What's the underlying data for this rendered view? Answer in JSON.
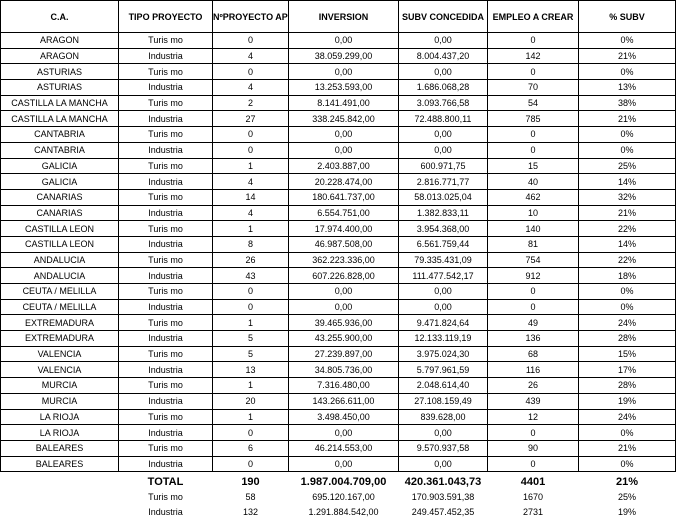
{
  "table": {
    "header": [
      "C.A.",
      "TIPO PROYECTO",
      "NºPROYECTO APROBADOS",
      "INVERSION",
      "SUBV CONCEDIDA",
      "EMPLEO A CREAR",
      "% SUBV"
    ],
    "rows": [
      [
        "ARAGON",
        "Turis mo",
        "0",
        "0,00",
        "0,00",
        "0",
        "0%"
      ],
      [
        "ARAGON",
        "Industria",
        "4",
        "38.059.299,00",
        "8.004.437,20",
        "142",
        "21%"
      ],
      [
        "ASTURIAS",
        "Turis mo",
        "0",
        "0,00",
        "0,00",
        "0",
        "0%"
      ],
      [
        "ASTURIAS",
        "Industria",
        "4",
        "13.253.593,00",
        "1.686.068,28",
        "70",
        "13%"
      ],
      [
        "CASTILLA LA MANCHA",
        "Turis mo",
        "2",
        "8.141.491,00",
        "3.093.766,58",
        "54",
        "38%"
      ],
      [
        "CASTILLA LA MANCHA",
        "Industria",
        "27",
        "338.245.842,00",
        "72.488.800,11",
        "785",
        "21%"
      ],
      [
        "CANTABRIA",
        "Turis mo",
        "0",
        "0,00",
        "0,00",
        "0",
        "0%"
      ],
      [
        "CANTABRIA",
        "Industria",
        "0",
        "0,00",
        "0,00",
        "0",
        "0%"
      ],
      [
        "GALICIA",
        "Turis mo",
        "1",
        "2.403.887,00",
        "600.971,75",
        "15",
        "25%"
      ],
      [
        "GALICIA",
        "Industria",
        "4",
        "20.228.474,00",
        "2.816.771,77",
        "40",
        "14%"
      ],
      [
        "CANARIAS",
        "Turis mo",
        "14",
        "180.641.737,00",
        "58.013.025,04",
        "462",
        "32%"
      ],
      [
        "CANARIAS",
        "Industria",
        "4",
        "6.554.751,00",
        "1.382.833,11",
        "10",
        "21%"
      ],
      [
        "CASTILLA LEON",
        "Turis mo",
        "1",
        "17.974.400,00",
        "3.954.368,00",
        "140",
        "22%"
      ],
      [
        "CASTILLA LEON",
        "Industria",
        "8",
        "46.987.508,00",
        "6.561.759,44",
        "81",
        "14%"
      ],
      [
        "ANDALUCIA",
        "Turis mo",
        "26",
        "362.223.336,00",
        "79.335.431,09",
        "754",
        "22%"
      ],
      [
        "ANDALUCIA",
        "Industria",
        "43",
        "607.226.828,00",
        "111.477.542,17",
        "912",
        "18%"
      ],
      [
        "CEUTA / MELILLA",
        "Turis mo",
        "0",
        "0,00",
        "0,00",
        "0",
        "0%"
      ],
      [
        "CEUTA / MELILLA",
        "Industria",
        "0",
        "0,00",
        "0,00",
        "0",
        "0%"
      ],
      [
        "EXTREMADURA",
        "Turis mo",
        "1",
        "39.465.936,00",
        "9.471.824,64",
        "49",
        "24%"
      ],
      [
        "EXTREMADURA",
        "Industria",
        "5",
        "43.255.900,00",
        "12.133.119,19",
        "136",
        "28%"
      ],
      [
        "VALENCIA",
        "Turis mo",
        "5",
        "27.239.897,00",
        "3.975.024,30",
        "68",
        "15%"
      ],
      [
        "VALENCIA",
        "Industria",
        "13",
        "34.805.736,00",
        "5.797.961,59",
        "116",
        "17%"
      ],
      [
        "MURCIA",
        "Turis mo",
        "1",
        "7.316.480,00",
        "2.048.614,40",
        "26",
        "28%"
      ],
      [
        "MURCIA",
        "Industria",
        "20",
        "143.266.611,00",
        "27.108.159,49",
        "439",
        "19%"
      ],
      [
        "LA RIOJA",
        "Turis mo",
        "1",
        "3.498.450,00",
        "839.628,00",
        "12",
        "24%"
      ],
      [
        "LA RIOJA",
        "Industria",
        "0",
        "0,00",
        "0,00",
        "0",
        "0%"
      ],
      [
        "BALEARES",
        "Turis mo",
        "6",
        "46.214.553,00",
        "9.570.937,58",
        "90",
        "21%"
      ],
      [
        "BALEARES",
        "Industria",
        "0",
        "0,00",
        "0,00",
        "0",
        "0%"
      ]
    ],
    "totals": [
      [
        "TOTAL",
        "190",
        "1.987.004.709,00",
        "420.361.043,73",
        "4401",
        "21%"
      ],
      [
        "Turis mo",
        "58",
        "695.120.167,00",
        "170.903.591,38",
        "1670",
        "25%"
      ],
      [
        "Industria",
        "132",
        "1.291.884.542,00",
        "249.457.452,35",
        "2731",
        "19%"
      ]
    ]
  }
}
